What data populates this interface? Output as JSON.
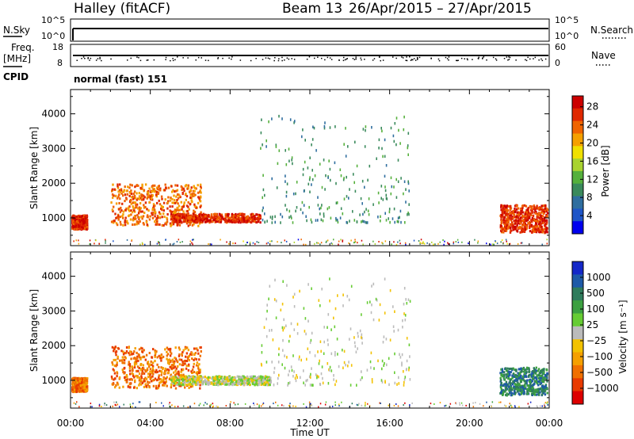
{
  "header": {
    "station": "Halley (fitACF)",
    "beam": "Beam 13",
    "date_range": "26/Apr/2015 – 27/Apr/2015"
  },
  "top_panels": {
    "nsky_label": "N.Sky",
    "nsearch_label": "N.Search",
    "nsky_ticks": [
      "10^5",
      "10^0"
    ],
    "nsearch_ticks": [
      "10^5",
      "10^0"
    ],
    "freq_label": "Freq.",
    "freq_unit": "[MHz]",
    "freq_ticks": [
      "18",
      "8"
    ],
    "nave_label": "Nave",
    "nave_ticks": [
      "60",
      "0"
    ],
    "cpid_label": "CPID",
    "cpid_text": "normal (fast) 151"
  },
  "chart_data": [
    {
      "type": "heatmap",
      "name": "power-panel",
      "ylabel": "Slant Range [km]",
      "yticks": [
        1000,
        2000,
        3000,
        4000
      ],
      "ylim": [
        200,
        4700
      ],
      "xlim_hours": [
        0,
        24
      ],
      "xticks": [
        "00:00",
        "04:00",
        "08:00",
        "12:00",
        "16:00",
        "20:00",
        "00:00"
      ],
      "colorbar": {
        "label": "Power [dB]",
        "ticks": [
          "4",
          "8",
          "12",
          "16",
          "20",
          "24",
          "28"
        ],
        "colors": [
          "#0000ee",
          "#1e55c8",
          "#2f6e9f",
          "#3a8a5c",
          "#55b03c",
          "#a9d330",
          "#f0e000",
          "#f5a000",
          "#f06400",
          "#e02800",
          "#cc0000"
        ]
      },
      "features": [
        {
          "desc": "near-range band",
          "hours": [
            0,
            0.8
          ],
          "range": [
            700,
            1100
          ],
          "level": 9
        },
        {
          "desc": "strong echo region",
          "hours": [
            2,
            6.5
          ],
          "range": [
            800,
            2000
          ],
          "level": 8
        },
        {
          "desc": "strong band",
          "hours": [
            5,
            9.5
          ],
          "range": [
            900,
            1150
          ],
          "level": 9
        },
        {
          "desc": "scattered echoes",
          "hours": [
            9.5,
            17
          ],
          "range": [
            900,
            4000
          ],
          "level": 3
        },
        {
          "desc": "late strong band",
          "hours": [
            21.5,
            24
          ],
          "range": [
            600,
            1400
          ],
          "level": 9
        }
      ]
    },
    {
      "type": "heatmap",
      "name": "velocity-panel",
      "ylabel": "Slant Range [km]",
      "yticks": [
        1000,
        2000,
        3000,
        4000
      ],
      "ylim": [
        200,
        4700
      ],
      "xlim_hours": [
        0,
        24
      ],
      "xticks": [
        "00:00",
        "04:00",
        "08:00",
        "12:00",
        "16:00",
        "20:00",
        "00:00"
      ],
      "xlabel": "Time UT",
      "colorbar": {
        "label": "Velocity [m s⁻¹]",
        "ticks": [
          "1000",
          "500",
          "100",
          "25",
          "−25",
          "−100",
          "−500",
          "−1000"
        ],
        "colors": [
          "#1428c8",
          "#1e5aa8",
          "#2f7c5c",
          "#3ca040",
          "#66cc33",
          "#bbbbbb",
          "#f3c200",
          "#f5a000",
          "#f07000",
          "#e83a00",
          "#dd0000"
        ]
      },
      "features": [
        {
          "desc": "near-range band",
          "hours": [
            0,
            0.8
          ],
          "range": [
            700,
            1100
          ],
          "level": 8
        },
        {
          "desc": "negative velocity region",
          "hours": [
            2,
            6.5
          ],
          "range": [
            800,
            2000
          ],
          "level": 8
        },
        {
          "desc": "slow band",
          "hours": [
            5,
            10
          ],
          "range": [
            900,
            1150
          ],
          "level": 5
        },
        {
          "desc": "scattered echoes",
          "hours": [
            9.5,
            17
          ],
          "range": [
            900,
            4000
          ],
          "level": 5
        },
        {
          "desc": "late positive band",
          "hours": [
            21.5,
            24
          ],
          "range": [
            600,
            1400
          ],
          "level": 2
        }
      ]
    }
  ]
}
